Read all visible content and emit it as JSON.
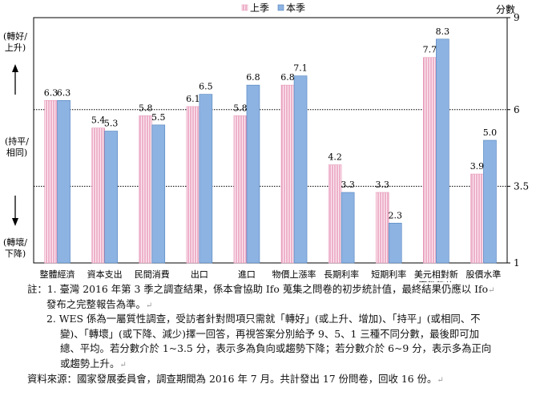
{
  "chart_data": {
    "type": "bar",
    "categories": [
      "整體經濟",
      "資本支出",
      "民間消費",
      "出口",
      "進口",
      "物價上漲率",
      "長期利率",
      "短期利率",
      "美元相對新\n臺幣幣值",
      "股價水準"
    ],
    "series": [
      {
        "name": "上季",
        "values": [
          6.3,
          5.4,
          5.8,
          6.1,
          5.8,
          6.8,
          4.2,
          3.3,
          7.7,
          3.9
        ],
        "color": "#f2b6cd",
        "pattern": "pink-vertical-lines"
      },
      {
        "name": "本季",
        "values": [
          6.3,
          5.3,
          5.5,
          6.5,
          6.8,
          7.1,
          3.3,
          2.3,
          8.3,
          5.0
        ],
        "color": "#8db3e2"
      }
    ],
    "ylim": [
      1,
      9
    ],
    "yticks": [
      "9",
      "6",
      "3.5",
      "1"
    ],
    "reference_lines": [
      6,
      3.5
    ],
    "ylabel": "分數",
    "legend_position": "top-center",
    "left_annotations": {
      "top": "(轉好/\n上升)",
      "middle": "(持平/\n相同)",
      "bottom": "(轉壞/\n下降)"
    }
  },
  "notes": {
    "note1_line1": "註：1. 臺灣 2016 年第 3 季之調查結果，係本會協助 Ifo 蒐集之問卷的初步統計值，最終結果仍應以 Ifo",
    "note1_line2": "發布之完整報告為準。",
    "note2_line1": "2. WES 係為一屬質性調查，受訪者針對問項只需就「轉好」(或上升、增加)、「持平」(或相同、不",
    "note2_line2": "變)、「轉壞」(或下降、減少)擇一回答，再視答案分別給予 9、5、1 三種不同分數，最後即可加",
    "note2_line3": "總、平均。若分數介於 1~3.5 分，表示多為負向或趨勢下降；若分數介於 6~9 分，表示多為正向",
    "note2_line4": "或趨勢上升。",
    "source": "資料來源：國家發展委員會，調查期間為 2016 年 7 月。共計發出 17 份問卷，回收 16 份。",
    "para_mark": "↵"
  }
}
